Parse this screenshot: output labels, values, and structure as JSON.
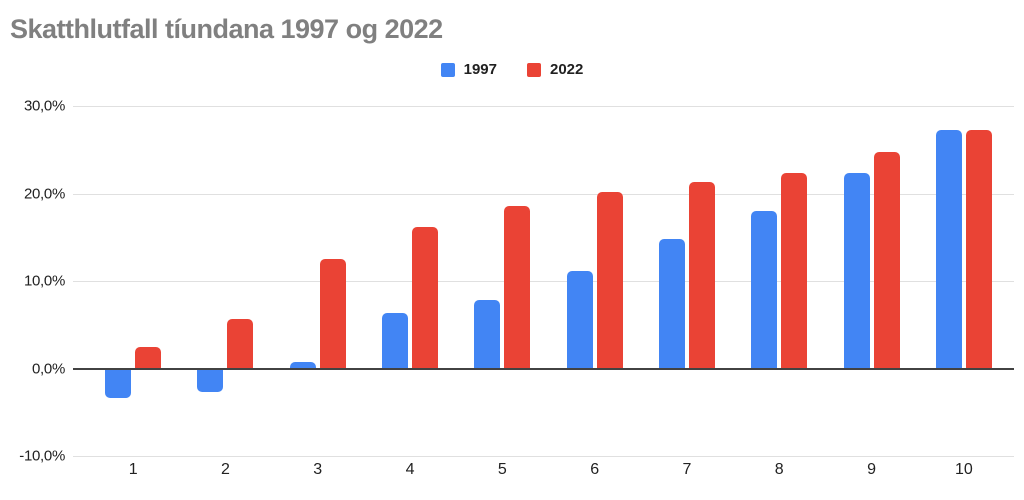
{
  "page": {
    "background": "#ffffff"
  },
  "chart_data": {
    "type": "bar",
    "title": "Skatthlutfall tíundana 1997 og 2022",
    "title_color": "#808080",
    "categories": [
      "1",
      "2",
      "3",
      "4",
      "5",
      "6",
      "7",
      "8",
      "9",
      "10"
    ],
    "series": [
      {
        "name": "1997",
        "color": "#4285F4",
        "values": [
          -3.2,
          -2.6,
          0.8,
          6.4,
          7.8,
          11.1,
          14.8,
          18.0,
          22.4,
          27.3
        ]
      },
      {
        "name": "2022",
        "color": "#EA4335",
        "values": [
          2.5,
          5.7,
          12.5,
          16.2,
          18.6,
          20.2,
          21.3,
          22.3,
          24.7,
          27.3
        ]
      }
    ],
    "y_axis": {
      "min": -10,
      "max": 30,
      "ticks": [
        {
          "label": "30,0%",
          "value": 30
        },
        {
          "label": "20,0%",
          "value": 20
        },
        {
          "label": "10,0%",
          "value": 10
        },
        {
          "label": "0,0%",
          "value": 0
        },
        {
          "label": "-10,0%",
          "value": -10
        }
      ]
    },
    "grid": true,
    "legend_position": "top",
    "gridline_color": "#e0e0e0",
    "zero_axis_color": "#424242",
    "label_color": "#222222"
  }
}
